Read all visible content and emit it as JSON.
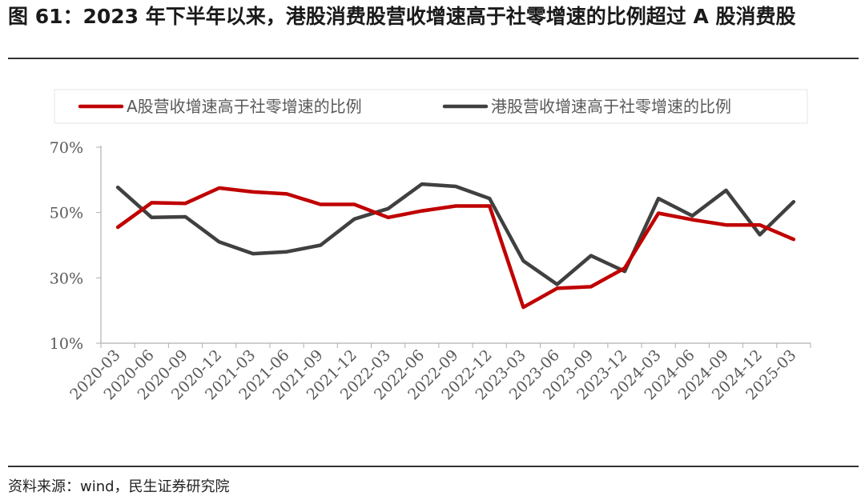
{
  "title": "图 61：2023 年下半年以来，港股消费股营收增速高于社零增速的比例超过 A 股消费股",
  "source": "资料来源：wind，民生证券研究院",
  "chart_data": {
    "type": "line",
    "title": "",
    "xlabel": "",
    "ylabel": "",
    "ylim": [
      0.1,
      0.7
    ],
    "yticks": [
      0.1,
      0.3,
      0.5,
      0.7
    ],
    "ytick_labels": [
      "10%",
      "30%",
      "50%",
      "70%"
    ],
    "legend_position": "top",
    "categories": [
      "2020-03",
      "2020-06",
      "2020-09",
      "2020-12",
      "2021-03",
      "2021-06",
      "2021-09",
      "2021-12",
      "2022-03",
      "2022-06",
      "2022-09",
      "2022-12",
      "2023-03",
      "2023-06",
      "2023-09",
      "2023-12",
      "2024-03",
      "2024-06",
      "2024-09",
      "2024-12",
      "2025-03"
    ],
    "series": [
      {
        "name": "A股营收增速高于社零增速的比例",
        "color": "#C00000",
        "values": [
          0.455,
          0.53,
          0.528,
          0.575,
          0.563,
          0.557,
          0.525,
          0.525,
          0.485,
          0.505,
          0.52,
          0.52,
          0.21,
          0.268,
          0.273,
          0.33,
          0.498,
          0.478,
          0.462,
          0.462,
          0.418
        ]
      },
      {
        "name": "港股营收增速高于社零增速的比例",
        "color": "#404040",
        "values": [
          0.577,
          0.485,
          0.487,
          0.41,
          0.374,
          0.38,
          0.4,
          0.48,
          0.512,
          0.587,
          0.58,
          0.543,
          0.352,
          0.28,
          0.368,
          0.32,
          0.543,
          0.49,
          0.568,
          0.432,
          0.533
        ]
      }
    ]
  }
}
